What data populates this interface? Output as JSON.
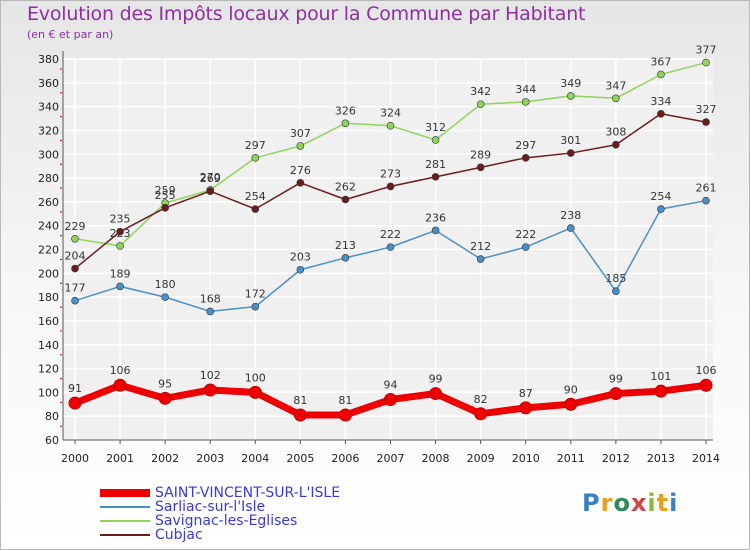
{
  "title": "Evolution des Impôts locaux pour la Commune par Habitant",
  "subtitle": "(en € et par an)",
  "logo": {
    "text": "Proxiti",
    "colors": [
      "#3b7fc4",
      "#e8a21a",
      "#2e8b57",
      "#d64541",
      "#8bb83a",
      "#e8a21a",
      "#3b7fc4"
    ]
  },
  "chart_data": {
    "type": "line",
    "x": [
      "2000",
      "2001",
      "2002",
      "2003",
      "2004",
      "2005",
      "2006",
      "2007",
      "2008",
      "2009",
      "2010",
      "2011",
      "2012",
      "2013",
      "2014"
    ],
    "ylim": [
      60,
      380
    ],
    "yticks": [
      60,
      80,
      100,
      120,
      140,
      160,
      180,
      200,
      220,
      240,
      260,
      280,
      300,
      320,
      340,
      360,
      380
    ],
    "grid": true,
    "legend_position": "bottom-left",
    "series": [
      {
        "name": "SAINT-VINCENT-SUR-L'ISLE",
        "color": "#ee0000",
        "emphasis": true,
        "values": [
          91,
          106,
          95,
          102,
          100,
          81,
          81,
          94,
          99,
          82,
          87,
          90,
          99,
          101,
          106
        ]
      },
      {
        "name": "Sarliac-sur-l'Isle",
        "color": "#4a90c8",
        "values": [
          177,
          189,
          180,
          168,
          172,
          203,
          213,
          222,
          236,
          212,
          222,
          238,
          185,
          254,
          261
        ]
      },
      {
        "name": "Savignac-les-Eglises",
        "color": "#8fd45a",
        "values": [
          229,
          223,
          259,
          270,
          297,
          307,
          326,
          324,
          312,
          342,
          344,
          349,
          347,
          367,
          377
        ]
      },
      {
        "name": "Cubjac",
        "color": "#6b1d1d",
        "values": [
          204,
          235,
          255,
          269,
          254,
          276,
          262,
          273,
          281,
          289,
          297,
          301,
          308,
          334,
          327
        ]
      }
    ]
  }
}
